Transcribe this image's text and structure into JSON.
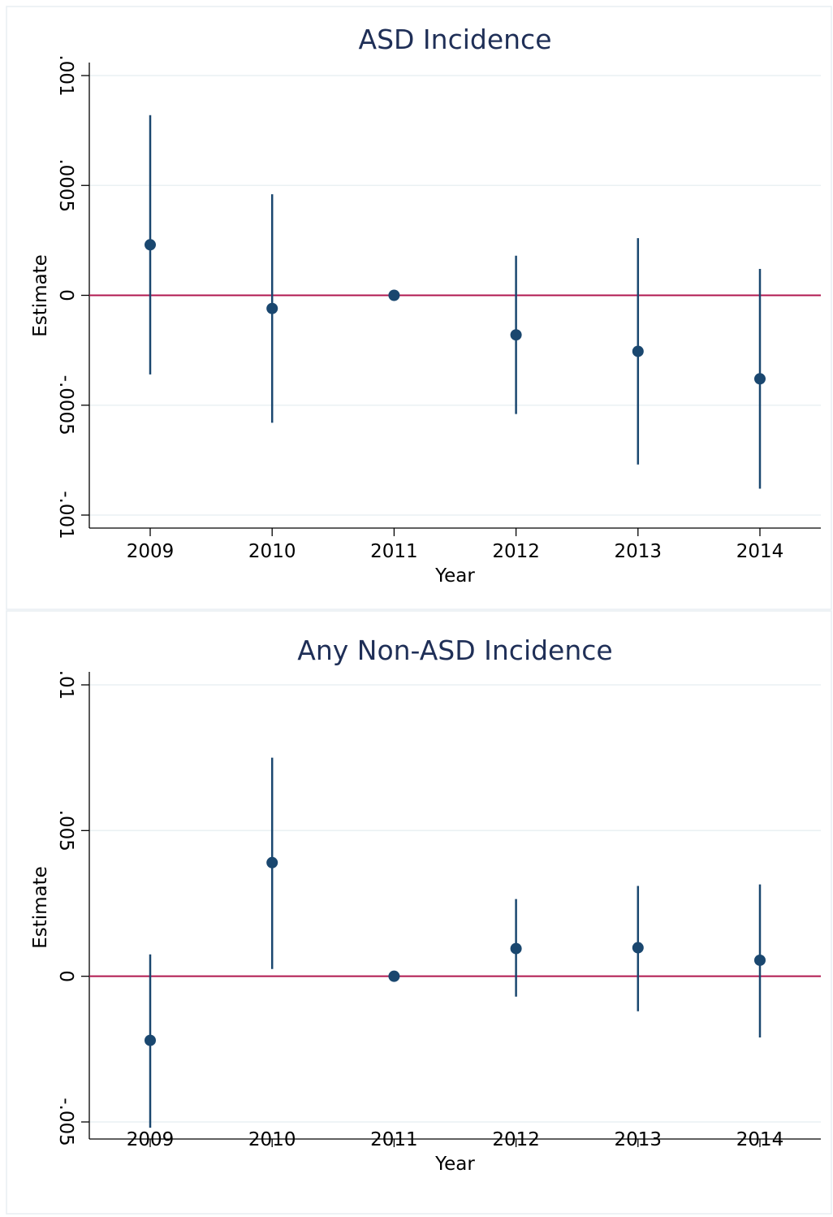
{
  "colors": {
    "marker": "#1a476f",
    "reference_line": "#b0174f",
    "title": "#1f2f57"
  },
  "chart_data": [
    {
      "type": "scatter",
      "title": "ASD Incidence",
      "xlabel": "Year",
      "ylabel": "Estimate",
      "x": [
        2009,
        2010,
        2011,
        2012,
        2013,
        2014
      ],
      "estimate": [
        0.00023,
        -6e-05,
        0,
        -0.00018,
        -0.000255,
        -0.00038
      ],
      "ci_low": [
        -0.00036,
        -0.00058,
        0,
        -0.00054,
        -0.00077,
        -0.00088
      ],
      "ci_high": [
        0.00082,
        0.00046,
        0,
        0.00018,
        0.00026,
        0.00012
      ],
      "yticks": [
        -0.001,
        -0.0005,
        0,
        0.0005,
        0.001
      ],
      "ytick_labels": [
        "-.001",
        "-.0005",
        "0",
        ".0005",
        ".001"
      ],
      "ylim": [
        -0.00106,
        0.00101
      ],
      "reference_y": 0,
      "grid": true
    },
    {
      "type": "scatter",
      "title": "Any Non-ASD Incidence",
      "xlabel": "Year",
      "ylabel": "Estimate",
      "x": [
        2009,
        2010,
        2011,
        2012,
        2013,
        2014
      ],
      "estimate": [
        -0.0022,
        0.0039,
        0,
        0.00095,
        0.00098,
        0.00055
      ],
      "ci_low": [
        -0.0052,
        0.00025,
        0,
        -0.0007,
        -0.0012,
        -0.0021
      ],
      "ci_high": [
        0.00075,
        0.0075,
        0,
        0.00265,
        0.0031,
        0.00315
      ],
      "yticks": [
        -0.005,
        0,
        0.005,
        0.01
      ],
      "ytick_labels": [
        "-.005",
        "0",
        ".005",
        ".01"
      ],
      "ylim": [
        -0.0057,
        0.0104
      ],
      "reference_y": 0,
      "grid": true
    }
  ]
}
